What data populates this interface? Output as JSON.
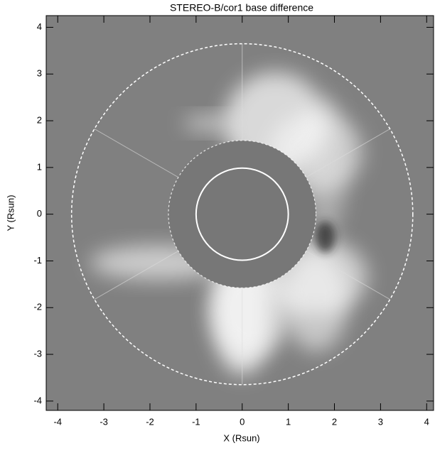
{
  "chart_data": {
    "type": "image",
    "title": "STEREO-B/cor1 base difference",
    "x_label": "X (Rsun)",
    "y_label": "Y (Rsun)",
    "xlim": [
      -4.25,
      4.15
    ],
    "ylim": [
      -4.2,
      4.25
    ],
    "xticks": [
      -4,
      -3,
      -2,
      -1,
      0,
      1,
      2,
      3,
      4
    ],
    "yticks": [
      -4,
      -3,
      -2,
      -1,
      0,
      1,
      2,
      3,
      4
    ],
    "sun_radius": 1,
    "occulter_radius": 1.6,
    "fov_radius": 3.7
  }
}
